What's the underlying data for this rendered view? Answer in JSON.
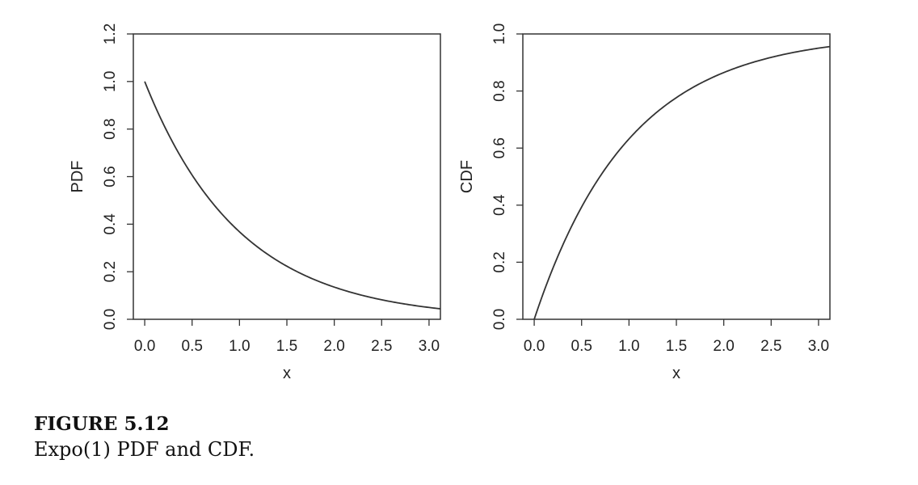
{
  "chart_data": [
    {
      "type": "line",
      "ylabel": "PDF",
      "xlabel": "x",
      "xlim": [
        -0.12,
        3.12
      ],
      "ylim": [
        0,
        1.2
      ],
      "x_ticks": [
        "0.0",
        "0.5",
        "1.0",
        "1.5",
        "2.0",
        "2.5",
        "3.0"
      ],
      "y_ticks": [
        "0.0",
        "0.2",
        "0.4",
        "0.6",
        "0.8",
        "1.0",
        "1.2"
      ],
      "x_tick_values": [
        0,
        0.5,
        1.0,
        1.5,
        2.0,
        2.5,
        3.0
      ],
      "y_tick_values": [
        0,
        0.2,
        0.4,
        0.6,
        0.8,
        1.0,
        1.2
      ],
      "series": [
        {
          "x": [
            0,
            0.25,
            0.5,
            0.75,
            1.0,
            1.25,
            1.5,
            1.75,
            2.0,
            2.25,
            2.5,
            2.75,
            3.0,
            3.12
          ],
          "y": [
            1.0,
            0.779,
            0.607,
            0.472,
            0.368,
            0.287,
            0.223,
            0.174,
            0.135,
            0.105,
            0.082,
            0.064,
            0.05,
            0.044
          ]
        }
      ],
      "grid": false,
      "line_color": "#333333"
    },
    {
      "type": "line",
      "ylabel": "CDF",
      "xlabel": "x",
      "xlim": [
        -0.12,
        3.12
      ],
      "ylim": [
        0,
        1.0
      ],
      "x_ticks": [
        "0.0",
        "0.5",
        "1.0",
        "1.5",
        "2.0",
        "2.5",
        "3.0"
      ],
      "y_ticks": [
        "0.0",
        "0.2",
        "0.4",
        "0.6",
        "0.8",
        "1.0"
      ],
      "x_tick_values": [
        0,
        0.5,
        1.0,
        1.5,
        2.0,
        2.5,
        3.0
      ],
      "y_tick_values": [
        0,
        0.2,
        0.4,
        0.6,
        0.8,
        1.0
      ],
      "series": [
        {
          "x": [
            0,
            0.25,
            0.5,
            0.75,
            1.0,
            1.25,
            1.5,
            1.75,
            2.0,
            2.25,
            2.5,
            2.75,
            3.0,
            3.12
          ],
          "y": [
            0,
            0.221,
            0.393,
            0.528,
            0.632,
            0.713,
            0.777,
            0.826,
            0.865,
            0.895,
            0.918,
            0.936,
            0.95,
            0.956
          ]
        }
      ],
      "grid": false,
      "line_color": "#333333"
    }
  ],
  "caption": {
    "label": "FIGURE 5.12",
    "text": "Expo(1) PDF and CDF."
  }
}
